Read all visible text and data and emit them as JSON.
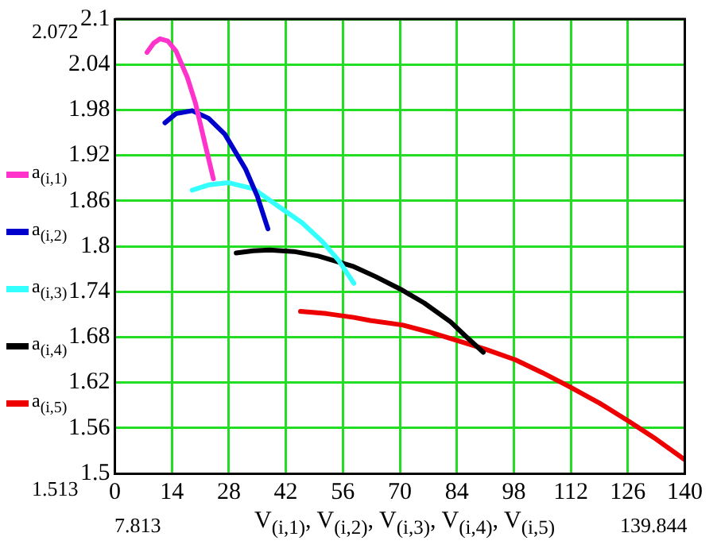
{
  "chart_data": {
    "type": "line",
    "xlabel": "V$_{(i,1)}$, V$_{(i,2)}$, V$_{(i,3)}$, V$_{(i,4)}$, V$_{(i,5)}$",
    "xlim": [
      0,
      140
    ],
    "xticks": [
      0,
      14,
      28,
      42,
      56,
      70,
      84,
      98,
      112,
      126,
      140
    ],
    "ylim": [
      1.5,
      2.1
    ],
    "yticks": [
      1.5,
      1.56,
      1.62,
      1.68,
      1.74,
      1.8,
      1.86,
      1.92,
      1.98,
      2.04,
      2.1
    ],
    "grid": true,
    "legend": "left",
    "marker": "none",
    "line_style": "solid",
    "annotations": [
      "2.072",
      "1.513",
      "7.813",
      "139.844"
    ],
    "series": [
      {
        "name": "a$_{(i,1)}$",
        "color": "#ff33cc",
        "x": [
          7.9,
          9.5,
          11.1,
          13,
          15,
          17.8,
          19.8,
          22.2,
          24.2
        ],
        "values": [
          2.056,
          2.068,
          2.074,
          2.071,
          2.058,
          2.023,
          1.989,
          1.934,
          1.889
        ]
      },
      {
        "name": "a$_{(i,2)}$",
        "color": "#0000cc",
        "x": [
          12.3,
          15,
          19,
          23,
          27,
          32.1,
          35,
          37.6
        ],
        "values": [
          1.963,
          1.975,
          1.979,
          1.969,
          1.948,
          1.902,
          1.866,
          1.823
        ]
      },
      {
        "name": "a$_{(i,3)}$",
        "color": "#33ffff",
        "x": [
          19,
          23,
          27.8,
          34,
          40.1,
          46,
          50.8,
          55,
          58.7
        ],
        "values": [
          1.874,
          1.881,
          1.884,
          1.876,
          1.853,
          1.831,
          1.807,
          1.781,
          1.751
        ]
      },
      {
        "name": "a$_{(i,4)}$",
        "color": "#000000",
        "x": [
          29.8,
          34,
          38,
          44,
          50,
          58.7,
          64,
          70.6,
          76,
          82.5,
          86,
          90.5
        ],
        "values": [
          1.791,
          1.794,
          1.795,
          1.793,
          1.787,
          1.773,
          1.76,
          1.742,
          1.725,
          1.7,
          1.682,
          1.66
        ]
      },
      {
        "name": "a$_{(i,5)}$",
        "color": "#ee0000",
        "x": [
          45.6,
          52,
          58.7,
          62.7,
          70.6,
          77,
          83.7,
          91,
          98.4,
          105,
          111.5,
          119,
          126.2,
          133,
          140
        ],
        "values": [
          1.714,
          1.711,
          1.706,
          1.702,
          1.696,
          1.687,
          1.676,
          1.664,
          1.65,
          1.633,
          1.615,
          1.593,
          1.569,
          1.545,
          1.518
        ]
      }
    ]
  }
}
